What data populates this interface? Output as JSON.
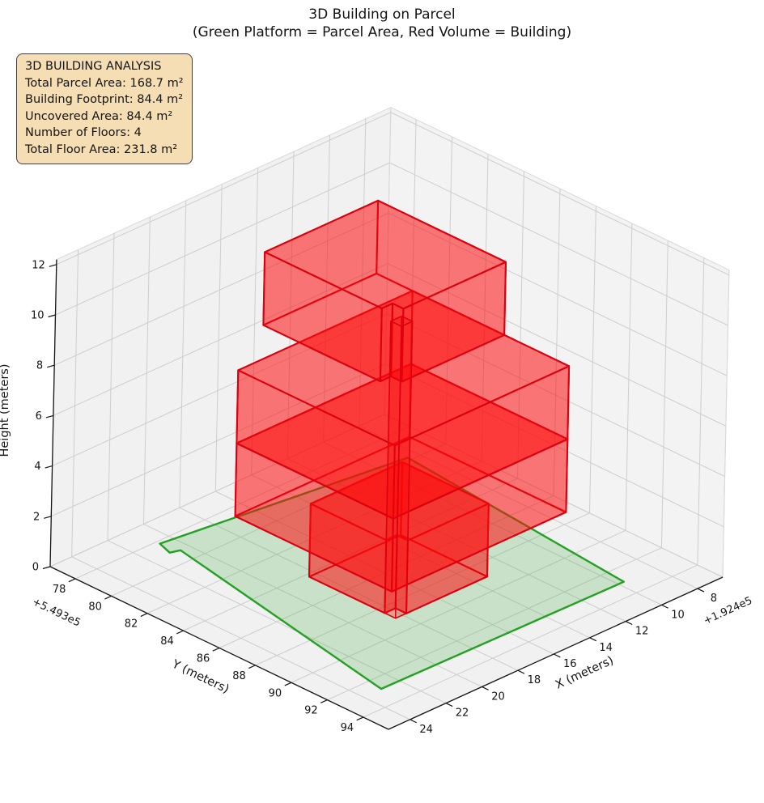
{
  "title": {
    "line1": "3D Building on Parcel",
    "line2": "(Green Platform = Parcel Area, Red Volume = Building)"
  },
  "info_box": {
    "lines": [
      "3D BUILDING ANALYSIS",
      "Total Parcel Area: 168.7 m²",
      "Building Footprint: 84.4 m²",
      "Uncovered Area: 84.4 m²",
      "Number of Floors: 4",
      "Total Floor Area: 231.8 m²"
    ]
  },
  "chart_data": {
    "type": "3d-building-plot",
    "axes": {
      "x": {
        "label": "X (meters)",
        "ticks": [
          8,
          10,
          12,
          14,
          16,
          18,
          20,
          22,
          24
        ],
        "offset_text": "+1.924e5",
        "range": [
          6.6,
          25.2
        ]
      },
      "y": {
        "label": "Y (meters)",
        "ticks": [
          78,
          80,
          82,
          84,
          86,
          88,
          90,
          92,
          94
        ],
        "offset_text": "+5.493e5",
        "range": [
          76.6,
          95.4
        ]
      },
      "z": {
        "label": "Height (meters)",
        "ticks": [
          0,
          2,
          4,
          6,
          8,
          10,
          12
        ],
        "range": [
          0,
          12.2
        ]
      }
    },
    "parcel": {
      "z": 0,
      "polygon": [
        [
          20.7,
          78.2
        ],
        [
          20.95,
          79.0
        ],
        [
          20.5,
          79.15
        ],
        [
          23.0,
          92.8
        ],
        [
          9.7,
          93.0
        ],
        [
          8.5,
          79.8
        ]
      ]
    },
    "building": {
      "num_floors": 4,
      "floor_height_m": 2.9,
      "floors": [
        {
          "footprint": [
            [
              13.3,
              84.2
            ],
            [
              18.4,
              84.2
            ],
            [
              18.4,
              88.4
            ],
            [
              17.8,
              88.4
            ],
            [
              17.8,
              89.0
            ],
            [
              13.3,
              89.0
            ]
          ],
          "z": [
            0,
            2.9
          ]
        },
        {
          "footprint": [
            [
              11.6,
              82.9
            ],
            [
              21.3,
              82.9
            ],
            [
              21.3,
              91.6
            ],
            [
              11.6,
              91.6
            ]
          ],
          "z": [
            2.9,
            5.8
          ]
        },
        {
          "footprint": [
            [
              11.6,
              82.9
            ],
            [
              21.3,
              82.9
            ],
            [
              21.3,
              91.6
            ],
            [
              11.6,
              91.6
            ]
          ],
          "z": [
            5.8,
            8.7
          ]
        },
        {
          "footprint": [
            [
              11.6,
              80.9
            ],
            [
              17.9,
              80.9
            ],
            [
              17.9,
              87.4
            ],
            [
              17.3,
              87.4
            ],
            [
              17.3,
              88.0
            ],
            [
              11.6,
              88.0
            ]
          ],
          "z": [
            8.7,
            11.6
          ]
        }
      ],
      "shaft": {
        "footprint": [
          [
            17.8,
            88.4
          ],
          [
            18.4,
            88.4
          ],
          [
            18.4,
            89.0
          ],
          [
            17.8,
            89.0
          ]
        ],
        "z": [
          0,
          11.6
        ]
      }
    },
    "colors": {
      "building_fill": "#ff0a0a",
      "building_fill_opacity": 0.32,
      "building_edge": "#dc000f",
      "parcel_fill": "#2ca02c",
      "parcel_fill_opacity": 0.2,
      "parcel_edge": "#23a123",
      "pane_left": "#f1f1f1",
      "pane_right": "#f3f3f3",
      "pane_floor": "#f1f1f1",
      "grid": "#cdcdcd",
      "pane_edge": "#d8d8d8",
      "spine": "#141414",
      "text": "#141414"
    }
  }
}
